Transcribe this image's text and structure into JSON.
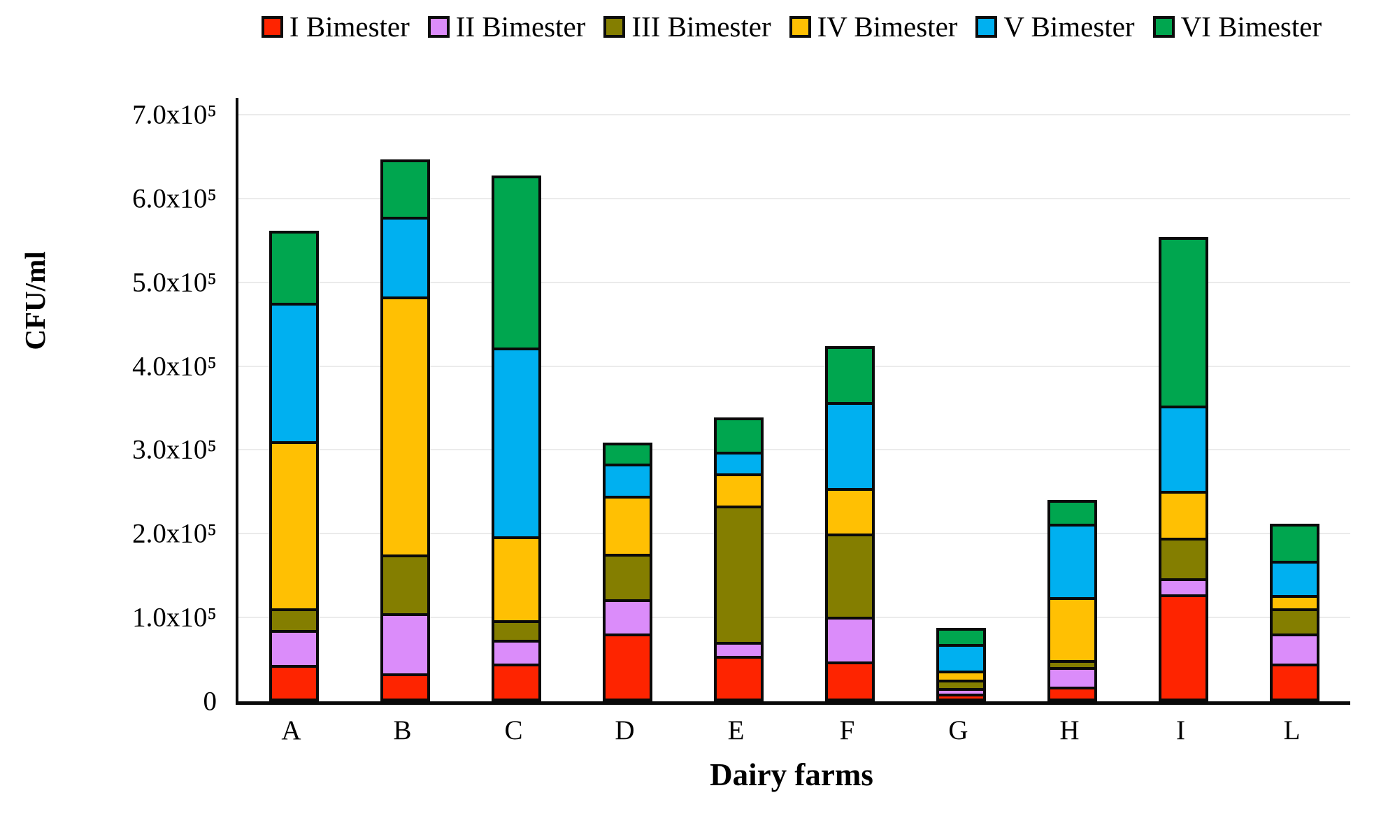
{
  "chart_data": {
    "type": "bar",
    "stacked": true,
    "title": "",
    "xlabel": "Dairy farms",
    "ylabel": "CFU/ml",
    "categories": [
      "A",
      "B",
      "C",
      "D",
      "E",
      "F",
      "G",
      "H",
      "I",
      "L"
    ],
    "ylim": [
      0,
      720000
    ],
    "grid": true,
    "legend_position": "top",
    "y_axis": {
      "ticks": [
        {
          "label": "0",
          "value": 0
        },
        {
          "label": "1.0x10⁵",
          "value": 100000
        },
        {
          "label": "2.0x10⁵",
          "value": 200000
        },
        {
          "label": "3.0x10⁵",
          "value": 300000
        },
        {
          "label": "4.0x10⁵",
          "value": 400000
        },
        {
          "label": "5.0x10⁵",
          "value": 500000
        },
        {
          "label": "6.0x10⁵",
          "value": 600000
        },
        {
          "label": "7.0x10⁵",
          "value": 700000
        }
      ]
    },
    "series": [
      {
        "name": "I Bimester",
        "color": "#fe2400",
        "values": [
          40000,
          30000,
          42000,
          78000,
          51000,
          44000,
          6000,
          14000,
          124000,
          42000
        ]
      },
      {
        "name": "II Bimester",
        "color": "#db8cfa",
        "values": [
          42000,
          72000,
          28000,
          41000,
          17000,
          53000,
          7000,
          23000,
          19000,
          36000
        ]
      },
      {
        "name": "III Bimester",
        "color": "#847e00",
        "values": [
          26000,
          70000,
          23000,
          54000,
          163000,
          99000,
          10000,
          8000,
          48000,
          30000
        ]
      },
      {
        "name": "IV Bimester",
        "color": "#ffc003",
        "values": [
          199000,
          308000,
          100000,
          69000,
          38000,
          54000,
          11000,
          75000,
          56000,
          16000
        ]
      },
      {
        "name": "V Bimester",
        "color": "#00b0f0",
        "values": [
          165000,
          95000,
          225000,
          38000,
          26000,
          103000,
          32000,
          88000,
          102000,
          41000
        ]
      },
      {
        "name": "VI Bimester",
        "color": "#00a64f",
        "values": [
          86000,
          68000,
          205000,
          25000,
          41000,
          67000,
          19000,
          28000,
          201000,
          44000
        ]
      }
    ],
    "totals": [
      558000,
      643000,
      623000,
      305000,
      336000,
      420000,
      85000,
      236000,
      550000,
      209000
    ]
  },
  "colors": {
    "axis": "#0a0a0a",
    "gridline": "#ebebeb",
    "background": "#ffffff"
  }
}
